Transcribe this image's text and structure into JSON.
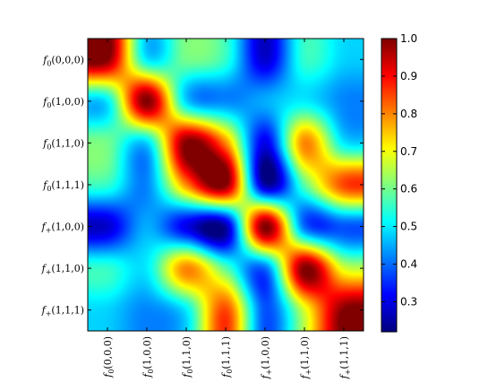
{
  "chart_data": {
    "type": "heatmap",
    "title": "",
    "xlabel": "",
    "ylabel": "",
    "labels": [
      {
        "fn": "f",
        "sub": "0",
        "args": "(0,0,0)"
      },
      {
        "fn": "f",
        "sub": "0",
        "args": "(1,0,0)"
      },
      {
        "fn": "f",
        "sub": "0",
        "args": "(1,1,0)"
      },
      {
        "fn": "f",
        "sub": "0",
        "args": "(1,1,1)"
      },
      {
        "fn": "f",
        "sub": "+",
        "args": "(1,0,0)"
      },
      {
        "fn": "f",
        "sub": "+",
        "args": "(1,1,0)"
      },
      {
        "fn": "f",
        "sub": "+",
        "args": "(1,1,1)"
      }
    ],
    "values": [
      [
        1.0,
        0.5,
        0.6,
        0.55,
        0.28,
        0.55,
        0.48
      ],
      [
        0.5,
        1.0,
        0.48,
        0.42,
        0.45,
        0.5,
        0.42
      ],
      [
        0.6,
        0.48,
        1.0,
        0.8,
        0.3,
        0.8,
        0.5
      ],
      [
        0.55,
        0.42,
        0.8,
        1.0,
        0.25,
        0.58,
        0.85
      ],
      [
        0.28,
        0.45,
        0.3,
        0.25,
        1.0,
        0.4,
        0.38
      ],
      [
        0.55,
        0.5,
        0.8,
        0.58,
        0.4,
        1.0,
        0.68
      ],
      [
        0.48,
        0.42,
        0.5,
        0.85,
        0.38,
        0.68,
        1.0
      ]
    ],
    "colormap": "jet",
    "value_range": [
      0.22,
      1.0
    ],
    "colorbar_ticks": [
      "0.3",
      "0.4",
      "0.5",
      "0.6",
      "0.7",
      "0.8",
      "0.9",
      "1.0"
    ],
    "colorbar_tick_values": [
      0.3,
      0.4,
      0.5,
      0.6,
      0.7,
      0.8,
      0.9,
      1.0
    ],
    "interpolation": "bicubic",
    "grid": false,
    "colorbar_position": "right"
  }
}
